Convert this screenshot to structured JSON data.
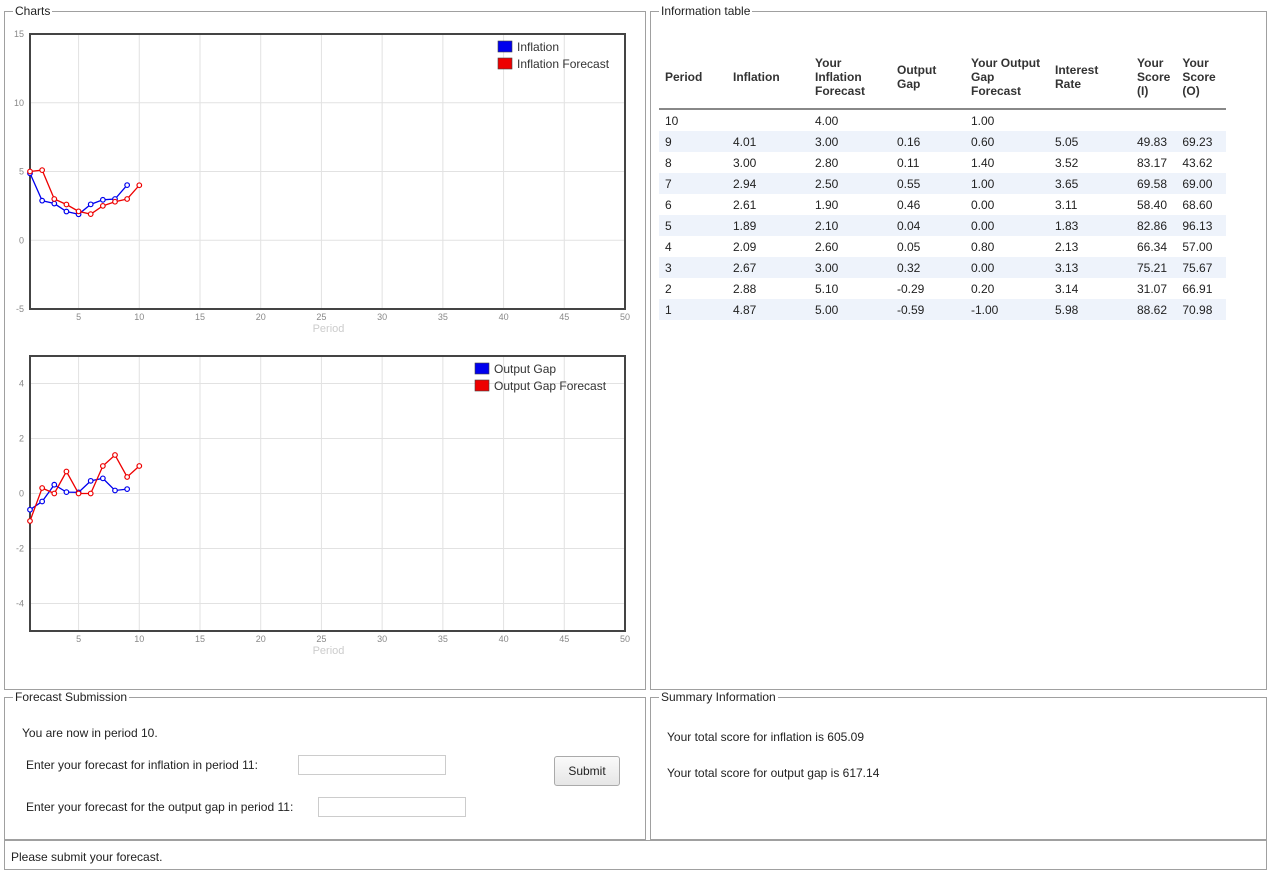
{
  "panels": {
    "charts": "Charts",
    "info": "Information table",
    "forecast": "Forecast Submission",
    "summary": "Summary Information"
  },
  "chart_data": [
    {
      "type": "line",
      "xlabel": "Period",
      "xlim": [
        1,
        50
      ],
      "ylim": [
        -5,
        15
      ],
      "xticks": [
        5,
        10,
        15,
        20,
        25,
        30,
        35,
        40,
        45,
        50
      ],
      "yticks": [
        -5,
        0,
        5,
        10,
        15
      ],
      "legend_position": "top-right",
      "grid": true,
      "series": [
        {
          "name": "Inflation",
          "color": "#0000ee",
          "x": [
            1,
            2,
            3,
            4,
            5,
            6,
            7,
            8,
            9
          ],
          "y": [
            4.87,
            2.88,
            2.67,
            2.09,
            1.89,
            2.61,
            2.94,
            3.0,
            4.01
          ]
        },
        {
          "name": "Inflation Forecast",
          "color": "#ee0000",
          "x": [
            1,
            2,
            3,
            4,
            5,
            6,
            7,
            8,
            9,
            10
          ],
          "y": [
            5.0,
            5.1,
            3.0,
            2.6,
            2.1,
            1.9,
            2.5,
            2.8,
            3.0,
            4.0
          ]
        }
      ]
    },
    {
      "type": "line",
      "xlabel": "Period",
      "xlim": [
        1,
        50
      ],
      "ylim": [
        -5,
        5
      ],
      "xticks": [
        5,
        10,
        15,
        20,
        25,
        30,
        35,
        40,
        45,
        50
      ],
      "yticks": [
        -4,
        -2,
        0,
        2,
        4
      ],
      "legend_position": "top-right",
      "grid": true,
      "series": [
        {
          "name": "Output Gap",
          "color": "#0000ee",
          "x": [
            1,
            2,
            3,
            4,
            5,
            6,
            7,
            8,
            9
          ],
          "y": [
            -0.59,
            -0.29,
            0.32,
            0.05,
            0.04,
            0.46,
            0.55,
            0.11,
            0.16
          ]
        },
        {
          "name": "Output Gap Forecast",
          "color": "#ee0000",
          "x": [
            1,
            2,
            3,
            4,
            5,
            6,
            7,
            8,
            9,
            10
          ],
          "y": [
            -1.0,
            0.2,
            0.0,
            0.8,
            0.0,
            0.0,
            1.0,
            1.4,
            0.6,
            1.0
          ]
        }
      ]
    }
  ],
  "table": {
    "headers": [
      "Period",
      "Inflation",
      "Your Inflation Forecast",
      "Output Gap",
      "Your Output Gap Forecast",
      "Interest Rate",
      "Your Score (I)",
      "Your Score (O)"
    ],
    "rows": [
      [
        "10",
        "",
        "4.00",
        "",
        "1.00",
        "",
        "",
        ""
      ],
      [
        "9",
        "4.01",
        "3.00",
        "0.16",
        "0.60",
        "5.05",
        "49.83",
        "69.23"
      ],
      [
        "8",
        "3.00",
        "2.80",
        "0.11",
        "1.40",
        "3.52",
        "83.17",
        "43.62"
      ],
      [
        "7",
        "2.94",
        "2.50",
        "0.55",
        "1.00",
        "3.65",
        "69.58",
        "69.00"
      ],
      [
        "6",
        "2.61",
        "1.90",
        "0.46",
        "0.00",
        "3.11",
        "58.40",
        "68.60"
      ],
      [
        "5",
        "1.89",
        "2.10",
        "0.04",
        "0.00",
        "1.83",
        "82.86",
        "96.13"
      ],
      [
        "4",
        "2.09",
        "2.60",
        "0.05",
        "0.80",
        "2.13",
        "66.34",
        "57.00"
      ],
      [
        "3",
        "2.67",
        "3.00",
        "0.32",
        "0.00",
        "3.13",
        "75.21",
        "75.67"
      ],
      [
        "2",
        "2.88",
        "5.10",
        "-0.29",
        "0.20",
        "3.14",
        "31.07",
        "66.91"
      ],
      [
        "1",
        "4.87",
        "5.00",
        "-0.59",
        "-1.00",
        "5.98",
        "88.62",
        "70.98"
      ]
    ]
  },
  "forecast": {
    "period_text": "You are now in period 10.",
    "inflation_label": "Enter your forecast for inflation in period 11:",
    "inflation_value": "",
    "gap_label": "Enter your forecast for the output gap in period 11:",
    "gap_value": "",
    "submit_label": "Submit"
  },
  "summary": {
    "inflation_text": "Your total score for inflation is 605.09",
    "gap_text": "Your total score for output gap is 617.14"
  },
  "status": "Please submit your forecast."
}
